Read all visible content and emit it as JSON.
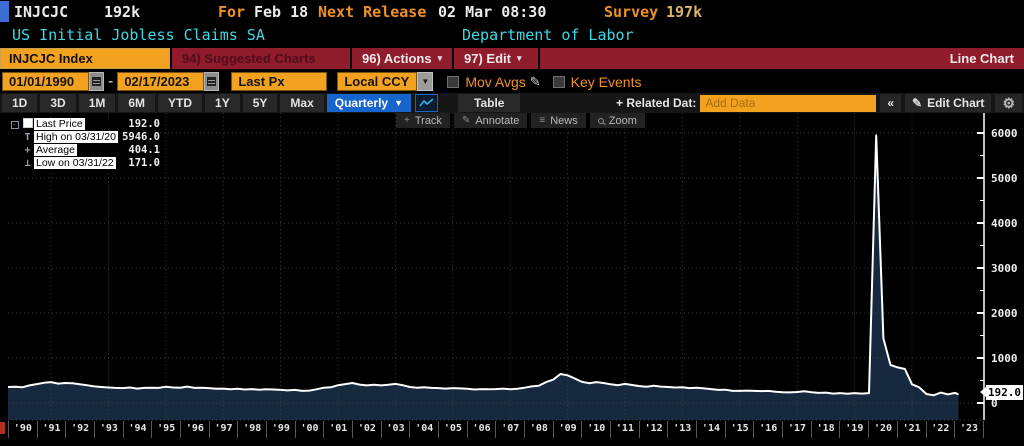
{
  "header": {
    "ticker": "INJCJC",
    "last_value": "192k",
    "for_label": "For",
    "for_value": "Feb 18",
    "next_release_label": "Next Release",
    "next_release_value": "02 Mar 08:30",
    "survey_label": "Survey",
    "survey_value": "197k",
    "security_name": "US Initial Jobless Claims SA",
    "source": "Department of Labor"
  },
  "menubar": {
    "security_field": "INJCJC Index",
    "suggested_charts": "94) Suggested Charts",
    "actions": "96) Actions",
    "edit": "97) Edit",
    "chart_type": "Line Chart"
  },
  "controls": {
    "date_from": "01/01/1990",
    "date_separator": "-",
    "date_to": "02/17/2023",
    "price_field": "Last Px",
    "currency": "Local CCY",
    "mov_avgs_label": "Mov Avgs",
    "key_events_label": "Key Events"
  },
  "toolbar": {
    "periods": [
      "1D",
      "3D",
      "1M",
      "6M",
      "YTD",
      "1Y",
      "5Y",
      "Max"
    ],
    "frequency": "Quarterly",
    "table_label": "Table",
    "related_data_label": "+ Related Dat:",
    "add_data_placeholder": "Add Data",
    "collapse_label": "«",
    "edit_chart_label": "Edit Chart"
  },
  "chart_tools": [
    {
      "label": "Track",
      "icon": "track-icon"
    },
    {
      "label": "Annotate",
      "icon": "annotate-icon"
    },
    {
      "label": "News",
      "icon": "news-icon"
    },
    {
      "label": "Zoom",
      "icon": "zoom-icon"
    }
  ],
  "legend": {
    "items": [
      {
        "marker": "swatch",
        "label": "Last Price",
        "value": "192.0"
      },
      {
        "marker": "T",
        "label": "High on 03/31/20",
        "value": "5946.0"
      },
      {
        "marker": "+",
        "label": "Average",
        "value": "404.1"
      },
      {
        "marker": "⊥",
        "label": "Low on 03/31/22",
        "value": "171.0"
      }
    ]
  },
  "chart_data": {
    "type": "area",
    "title": "US Initial Jobless Claims SA (INJCJC Index), quarterly",
    "x_start": 1990,
    "x_step": 0.25,
    "values": [
      355,
      360,
      350,
      390,
      420,
      450,
      465,
      430,
      445,
      440,
      415,
      395,
      370,
      355,
      345,
      335,
      330,
      345,
      320,
      335,
      340,
      335,
      360,
      345,
      340,
      365,
      335,
      340,
      330,
      315,
      320,
      305,
      315,
      300,
      310,
      295,
      305,
      300,
      290,
      280,
      290,
      270,
      275,
      305,
      340,
      350,
      395,
      420,
      445,
      410,
      390,
      405,
      390,
      405,
      425,
      395,
      355,
      340,
      350,
      335,
      330,
      320,
      330,
      325,
      315,
      300,
      310,
      305,
      310,
      320,
      305,
      315,
      340,
      370,
      385,
      465,
      520,
      645,
      615,
      545,
      470,
      440,
      465,
      445,
      415,
      395,
      425,
      400,
      375,
      360,
      385,
      365,
      355,
      345,
      350,
      330,
      340,
      325,
      310,
      290,
      295,
      270,
      270,
      275,
      270,
      265,
      270,
      250,
      240,
      235,
      245,
      260,
      240,
      225,
      230,
      210,
      220,
      205,
      220,
      210,
      220,
      5946,
      1435,
      845,
      790,
      755,
      415,
      350,
      200,
      171,
      230,
      190,
      225
    ],
    "last_point": {
      "x": 2023.12,
      "value": 192
    },
    "high": {
      "date": "03/31/20",
      "value": 5946.0
    },
    "low": {
      "date": "03/31/22",
      "value": 171.0
    },
    "average": 404.1,
    "last_price_label": "192.0",
    "ylim": [
      0,
      6400
    ],
    "yticks": [
      0,
      1000,
      2000,
      3000,
      4000,
      5000,
      6000
    ],
    "x_labels": [
      "'90",
      "'91",
      "'92",
      "'93",
      "'94",
      "'95",
      "'96",
      "'97",
      "'98",
      "'99",
      "'00",
      "'01",
      "'02",
      "'03",
      "'04",
      "'05",
      "'06",
      "'07",
      "'08",
      "'09",
      "'10",
      "'11",
      "'12",
      "'13",
      "'14",
      "'15",
      "'16",
      "'17",
      "'18",
      "'19",
      "'20",
      "'21",
      "'22",
      "'23"
    ],
    "grid": true,
    "line_color": "#ffffff",
    "fill_color": "#16293f",
    "grid_color": "#3c3c3c",
    "axis_color": "#ffffff"
  }
}
